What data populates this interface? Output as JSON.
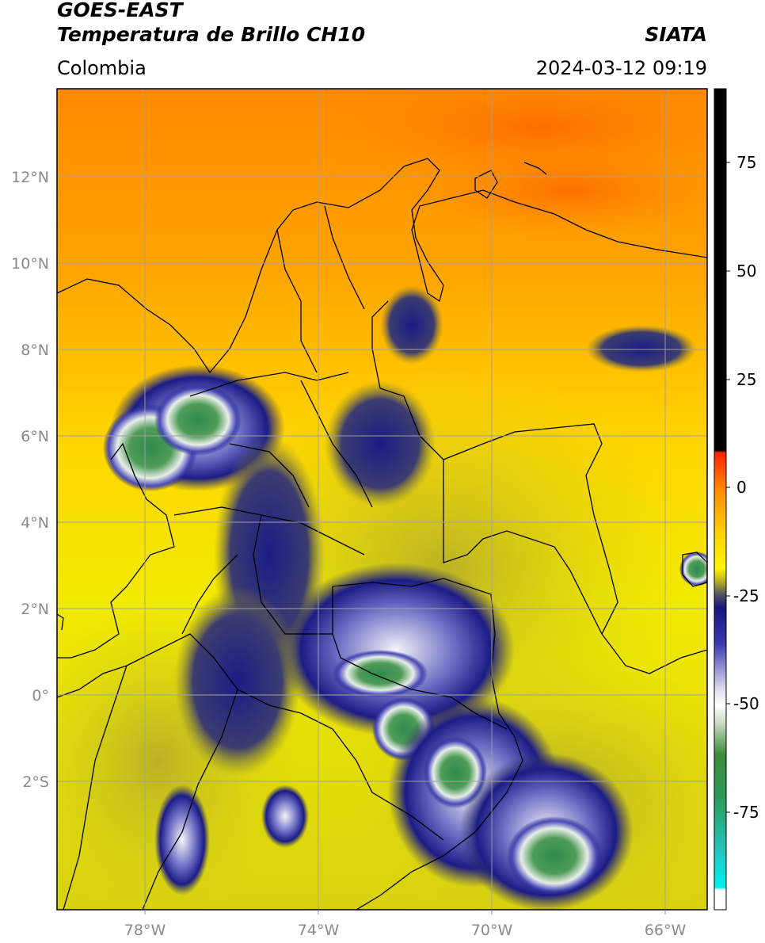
{
  "header": {
    "satellite": "GOES-EAST",
    "product": "Temperatura de Brillo CH10",
    "org": "SIATA",
    "region": "Colombia",
    "datetime": "2024-03-12 09:19"
  },
  "map": {
    "lon_labels": [
      "78°W",
      "74°W",
      "70°W",
      "66°W"
    ],
    "lat_labels": [
      "12°N",
      "10°N",
      "8°N",
      "6°N",
      "4°N",
      "2°N",
      "0°",
      "2°S"
    ]
  },
  "colorbar": {
    "labels": [
      "75",
      "50",
      "25",
      "0",
      "-25",
      "-50",
      "-75"
    ],
    "stops": [
      {
        "value": 90,
        "color": "#000000"
      },
      {
        "value": 8.5,
        "color": "#000000"
      },
      {
        "value": 8,
        "color": "#ff2200"
      },
      {
        "value": 0,
        "color": "#ff8800"
      },
      {
        "value": -10,
        "color": "#ffd200"
      },
      {
        "value": -18,
        "color": "#fff600"
      },
      {
        "value": -21,
        "color": "#b8b020"
      },
      {
        "value": -24,
        "color": "#505060"
      },
      {
        "value": -27,
        "color": "#16167e"
      },
      {
        "value": -35,
        "color": "#3a3ab0"
      },
      {
        "value": -45,
        "color": "#d8d8ec"
      },
      {
        "value": -49,
        "color": "#ffffff"
      },
      {
        "value": -53,
        "color": "#c8dcc0"
      },
      {
        "value": -60,
        "color": "#3c8c3c"
      },
      {
        "value": -70,
        "color": "#2e9a5a"
      },
      {
        "value": -82,
        "color": "#22c8c0"
      },
      {
        "value": -90,
        "color": "#00f0f0"
      },
      {
        "value": -90.5,
        "color": "#ffffff"
      },
      {
        "value": -95,
        "color": "#ffffff"
      }
    ]
  }
}
